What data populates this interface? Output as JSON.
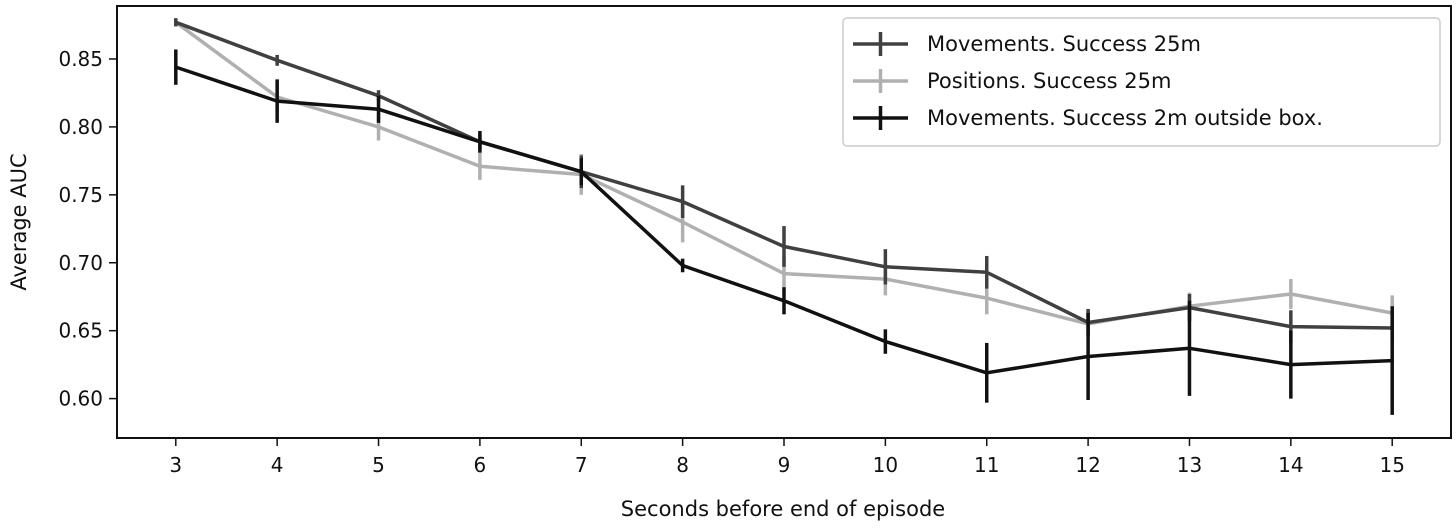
{
  "chart_data": {
    "type": "line",
    "title": "",
    "xlabel": "Seconds before end of episode",
    "ylabel": "Average AUC",
    "x": [
      3,
      4,
      5,
      6,
      7,
      8,
      9,
      10,
      11,
      12,
      13,
      14,
      15
    ],
    "xticks": [
      "3",
      "4",
      "5",
      "6",
      "7",
      "8",
      "9",
      "10",
      "11",
      "12",
      "13",
      "14",
      "15"
    ],
    "xlim": [
      2.42,
      15.58
    ],
    "yticks": [
      0.6,
      0.65,
      0.7,
      0.75,
      0.8,
      0.85
    ],
    "ytick_labels": [
      "0.60",
      "0.65",
      "0.70",
      "0.75",
      "0.80",
      "0.85"
    ],
    "ylim": [
      0.571,
      0.889
    ],
    "grid": false,
    "legend_position": "top-right",
    "series": [
      {
        "name": "Movements. Success 25m",
        "color": "#404040",
        "values": [
          0.877,
          0.849,
          0.823,
          0.789,
          0.767,
          0.745,
          0.712,
          0.697,
          0.693,
          0.656,
          0.667,
          0.653,
          0.652
        ],
        "errors": [
          0.003,
          0.004,
          0.004,
          0.006,
          0.012,
          0.012,
          0.015,
          0.013,
          0.012,
          0.01,
          0.01,
          0.012,
          0.01
        ]
      },
      {
        "name": "Positions. Success 25m",
        "color": "#b0b0b0",
        "values": [
          0.877,
          0.822,
          0.8,
          0.771,
          0.765,
          0.73,
          0.692,
          0.688,
          0.674,
          0.655,
          0.668,
          0.677,
          0.663
        ],
        "errors": [
          0.003,
          0.01,
          0.01,
          0.01,
          0.015,
          0.015,
          0.012,
          0.012,
          0.012,
          0.01,
          0.01,
          0.011,
          0.013
        ]
      },
      {
        "name": "Movements. Success 2m outside box.",
        "color": "#111111",
        "values": [
          0.844,
          0.819,
          0.813,
          0.789,
          0.767,
          0.698,
          0.672,
          0.642,
          0.619,
          0.631,
          0.637,
          0.625,
          0.628
        ],
        "errors": [
          0.013,
          0.016,
          0.01,
          0.008,
          0.01,
          0.005,
          0.01,
          0.009,
          0.022,
          0.032,
          0.035,
          0.025,
          0.04
        ]
      }
    ]
  }
}
